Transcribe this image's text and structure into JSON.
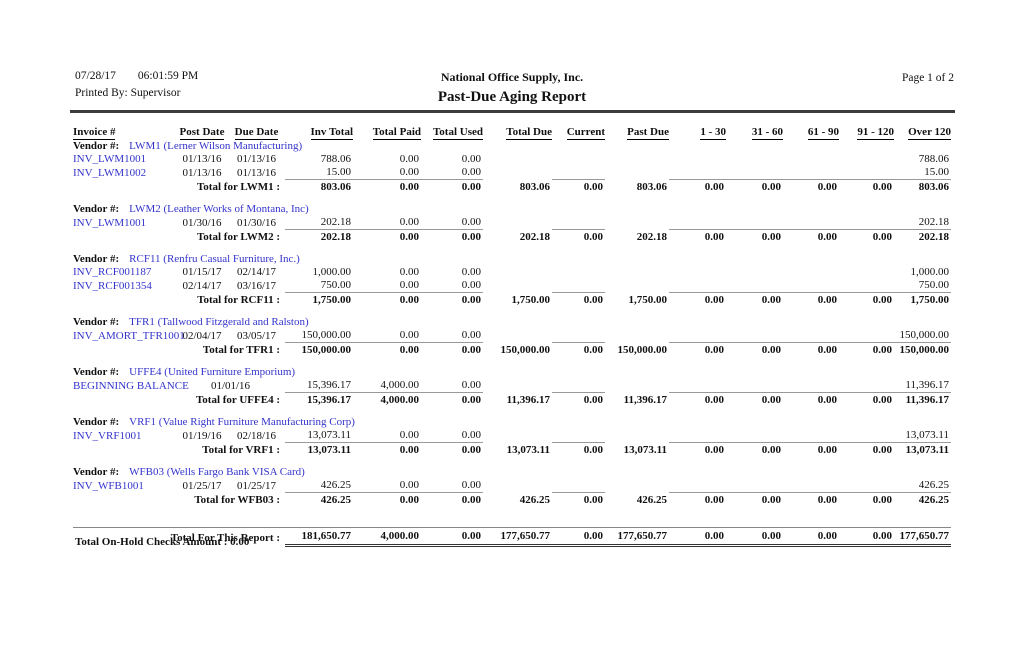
{
  "header": {
    "date": "07/28/17",
    "time": "06:01:59 PM",
    "printed_by": "Printed By: Supervisor",
    "company": "National Office Supply, Inc.",
    "report_title": "Past-Due Aging Report",
    "page_indicator": "Page 1 of 2"
  },
  "table": {
    "columns": [
      "Invoice #",
      "Post Date",
      "Due Date",
      "Inv Total",
      "Total Paid",
      "Total Used",
      "Total Due",
      "Current",
      "Past Due",
      "1 - 30",
      "31 - 60",
      "61 - 90",
      "91 - 120",
      "Over 120"
    ],
    "vendor_label": "Vendor #:",
    "groups": [
      {
        "vendor": "LWM1 (Lerner Wilson Manufacturing)",
        "rows": [
          [
            "INV_LWM1001",
            "01/13/16",
            "01/13/16",
            "788.06",
            "0.00",
            "0.00",
            "",
            "",
            "",
            "",
            "",
            "",
            "",
            "788.06"
          ],
          [
            "INV_LWM1002",
            "01/13/16",
            "01/13/16",
            "15.00",
            "0.00",
            "0.00",
            "",
            "",
            "",
            "",
            "",
            "",
            "",
            "15.00"
          ]
        ],
        "total_label": "Total for LWM1 :",
        "total": [
          "803.06",
          "0.00",
          "0.00",
          "803.06",
          "0.00",
          "803.06",
          "0.00",
          "0.00",
          "0.00",
          "0.00",
          "803.06"
        ]
      },
      {
        "vendor": "LWM2 (Leather Works of Montana, Inc)",
        "rows": [
          [
            "INV_LWM1001",
            "01/30/16",
            "01/30/16",
            "202.18",
            "0.00",
            "0.00",
            "",
            "",
            "",
            "",
            "",
            "",
            "",
            "202.18"
          ]
        ],
        "total_label": "Total for LWM2 :",
        "total": [
          "202.18",
          "0.00",
          "0.00",
          "202.18",
          "0.00",
          "202.18",
          "0.00",
          "0.00",
          "0.00",
          "0.00",
          "202.18"
        ]
      },
      {
        "vendor": "RCF11 (Renfru Casual Furniture, Inc.)",
        "rows": [
          [
            "INV_RCF001187",
            "01/15/17",
            "02/14/17",
            "1,000.00",
            "0.00",
            "0.00",
            "",
            "",
            "",
            "",
            "",
            "",
            "",
            "1,000.00"
          ],
          [
            "INV_RCF001354",
            "02/14/17",
            "03/16/17",
            "750.00",
            "0.00",
            "0.00",
            "",
            "",
            "",
            "",
            "",
            "",
            "",
            "750.00"
          ]
        ],
        "total_label": "Total for RCF11 :",
        "total": [
          "1,750.00",
          "0.00",
          "0.00",
          "1,750.00",
          "0.00",
          "1,750.00",
          "0.00",
          "0.00",
          "0.00",
          "0.00",
          "1,750.00"
        ]
      },
      {
        "vendor": "TFR1 (Tallwood Fitzgerald and Ralston)",
        "rows": [
          [
            "INV_AMORT_TFR1001",
            "02/04/17",
            "03/05/17",
            "150,000.00",
            "0.00",
            "0.00",
            "",
            "",
            "",
            "",
            "",
            "",
            "",
            "150,000.00"
          ]
        ],
        "total_label": "Total for TFR1 :",
        "total": [
          "150,000.00",
          "0.00",
          "0.00",
          "150,000.00",
          "0.00",
          "150,000.00",
          "0.00",
          "0.00",
          "0.00",
          "0.00",
          "150,000.00"
        ]
      },
      {
        "vendor": "UFFE4 (United Furniture Emporium)",
        "rows": [
          [
            "BEGINNING BALANCE",
            "",
            "01/01/16",
            "15,396.17",
            "4,000.00",
            "0.00",
            "",
            "",
            "",
            "",
            "",
            "",
            "",
            "11,396.17"
          ]
        ],
        "total_label": "Total for UFFE4 :",
        "total": [
          "15,396.17",
          "4,000.00",
          "0.00",
          "11,396.17",
          "0.00",
          "11,396.17",
          "0.00",
          "0.00",
          "0.00",
          "0.00",
          "11,396.17"
        ]
      },
      {
        "vendor": "VRF1 (Value Right Furniture Manufacturing Corp)",
        "rows": [
          [
            "INV_VRF1001",
            "01/19/16",
            "02/18/16",
            "13,073.11",
            "0.00",
            "0.00",
            "",
            "",
            "",
            "",
            "",
            "",
            "",
            "13,073.11"
          ]
        ],
        "total_label": "Total for VRF1 :",
        "total": [
          "13,073.11",
          "0.00",
          "0.00",
          "13,073.11",
          "0.00",
          "13,073.11",
          "0.00",
          "0.00",
          "0.00",
          "0.00",
          "13,073.11"
        ]
      },
      {
        "vendor": "WFB03 (Wells Fargo Bank VISA Card)",
        "rows": [
          [
            "INV_WFB1001",
            "01/25/17",
            "01/25/17",
            "426.25",
            "0.00",
            "0.00",
            "",
            "",
            "",
            "",
            "",
            "",
            "",
            "426.25"
          ]
        ],
        "total_label": "Total for WFB03 :",
        "total": [
          "426.25",
          "0.00",
          "0.00",
          "426.25",
          "0.00",
          "426.25",
          "0.00",
          "0.00",
          "0.00",
          "0.00",
          "426.25"
        ]
      }
    ],
    "report_total_label": "Total For This Report :",
    "report_total": [
      "181,650.77",
      "4,000.00",
      "0.00",
      "177,650.77",
      "0.00",
      "177,650.77",
      "0.00",
      "0.00",
      "0.00",
      "0.00",
      "177,650.77"
    ],
    "footer_note": "Total On-Hold Checks Amount : 0.00"
  }
}
